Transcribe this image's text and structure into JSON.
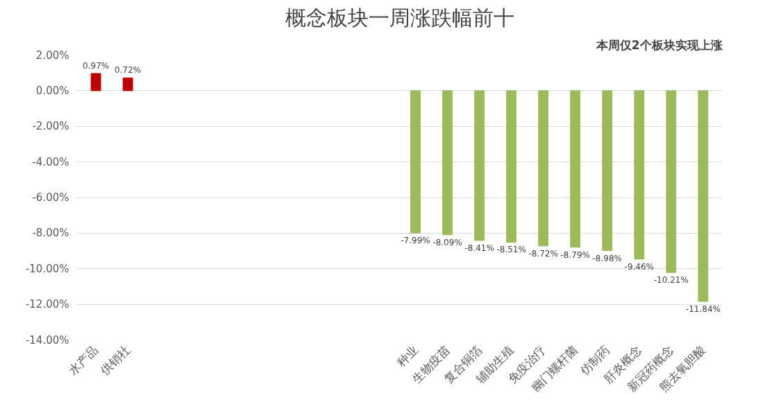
{
  "chart_data": {
    "type": "bar",
    "title": "概念板块一周涨跌幅前十",
    "annotations": [
      "本周仅2个板块实现上涨"
    ],
    "categories": [
      "水产品",
      "供销社",
      null,
      null,
      null,
      null,
      null,
      null,
      null,
      null,
      "种业",
      "生物疫苗",
      "复合铜箔",
      "辅助生殖",
      "免疫治疗",
      "幽门螺杆菌",
      "仿制药",
      "肝炎概念",
      "新冠药概念",
      "熊去氧胆酸"
    ],
    "values": [
      0.97,
      0.72,
      null,
      null,
      null,
      null,
      null,
      null,
      null,
      null,
      -7.99,
      -8.09,
      -8.41,
      -8.51,
      -8.72,
      -8.79,
      -8.98,
      -9.46,
      -10.21,
      -11.84
    ],
    "colors": [
      "#c00000",
      "#c00000",
      null,
      null,
      null,
      null,
      null,
      null,
      null,
      null,
      "#9bbb59",
      "#9bbb59",
      "#9bbb59",
      "#9bbb59",
      "#9bbb59",
      "#9bbb59",
      "#9bbb59",
      "#9bbb59",
      "#9bbb59",
      "#9bbb59"
    ],
    "value_labels": [
      "0.97%",
      "0.72%",
      null,
      null,
      null,
      null,
      null,
      null,
      null,
      null,
      "-7.99%",
      "-8.09%",
      "-8.41%",
      "-8.51%",
      "-8.72%",
      "-8.79%",
      "-8.98%",
      "-9.46%",
      "-10.21%",
      "-11.84%"
    ],
    "ylim": [
      -14,
      2
    ],
    "yticks": [
      {
        "value": 2,
        "label": "2.00%"
      },
      {
        "value": 0,
        "label": "0.00%"
      },
      {
        "value": -2,
        "label": "-2.00%"
      },
      {
        "value": -4,
        "label": "-4.00%"
      },
      {
        "value": -6,
        "label": "-6.00%"
      },
      {
        "value": -8,
        "label": "-8.00%"
      },
      {
        "value": -10,
        "label": "-10.00%"
      },
      {
        "value": -12,
        "label": "-12.00%"
      },
      {
        "value": -14,
        "label": "-14.00%"
      }
    ],
    "grid": "y"
  }
}
